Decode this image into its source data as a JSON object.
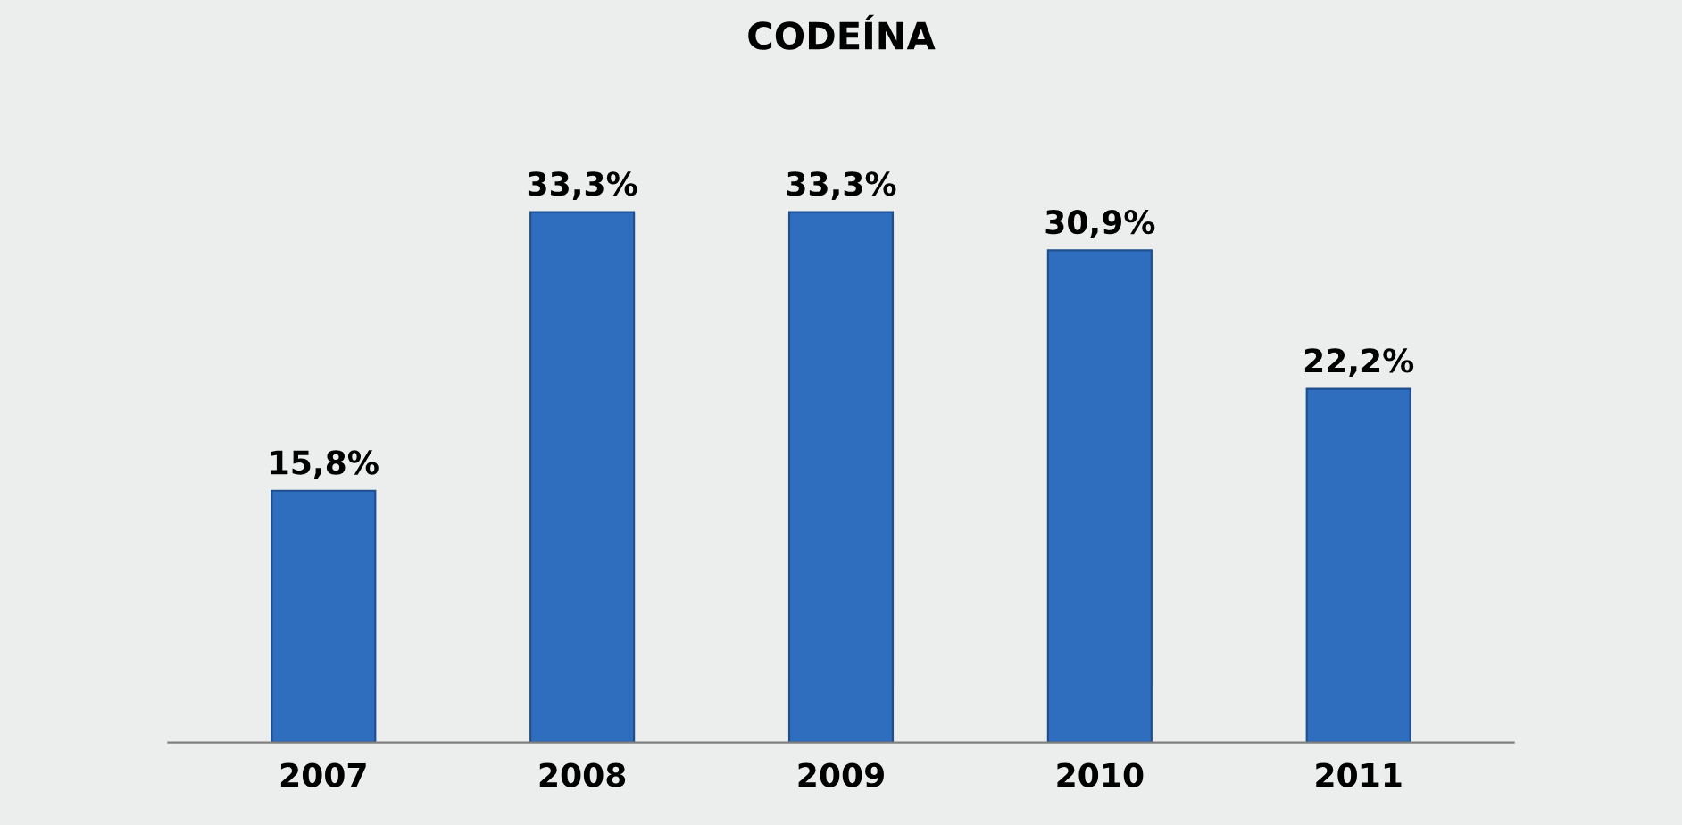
{
  "chart_data": {
    "type": "bar",
    "title": "CODEÍNA",
    "categories": [
      "2007",
      "2008",
      "2009",
      "2010",
      "2011"
    ],
    "values": [
      15.8,
      33.3,
      33.3,
      30.9,
      22.2
    ],
    "value_labels": [
      "15,8%",
      "33,3%",
      "33,3%",
      "30,9%",
      "22,2%"
    ],
    "color": "#2f6ebf",
    "tick_labels": "x",
    "grid": false,
    "legend": false
  }
}
